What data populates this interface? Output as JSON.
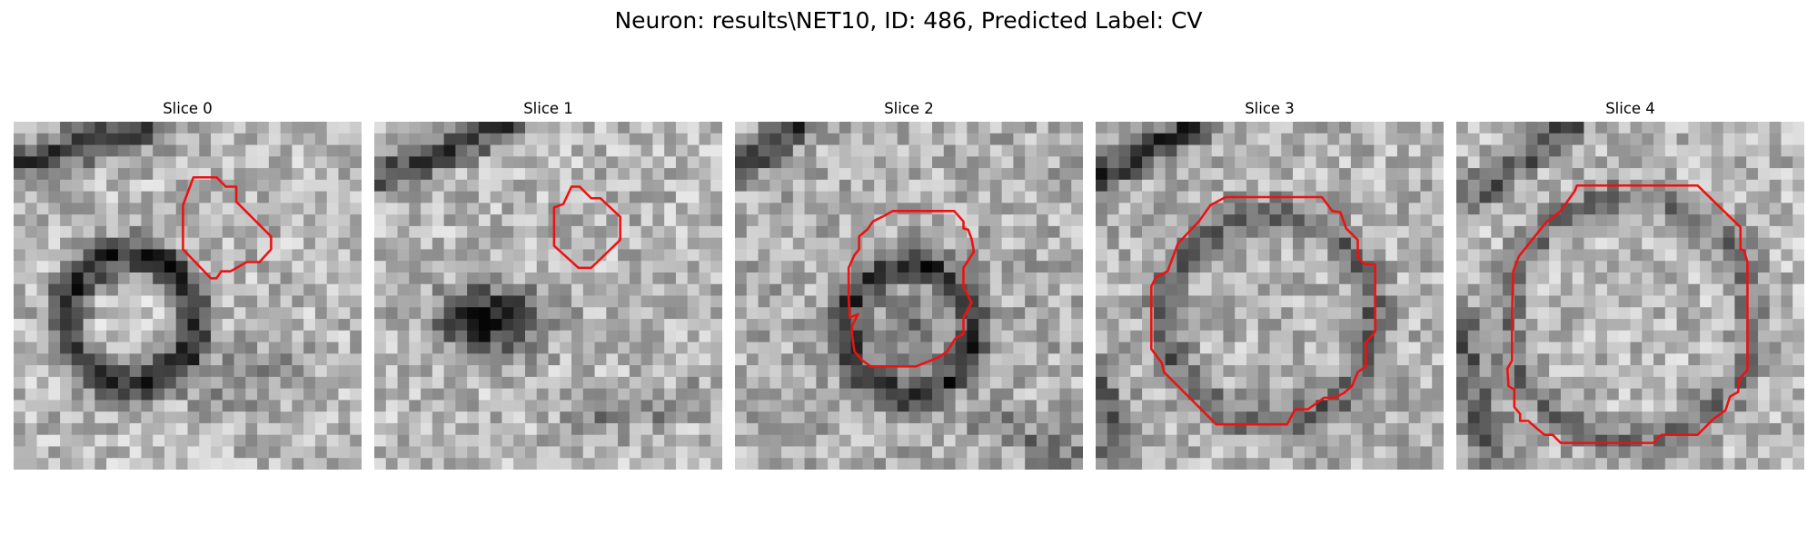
{
  "figure": {
    "suptitle": "Neuron: results\\NET10, ID: 486, Predicted Label: CV"
  },
  "panels": [
    {
      "title": "Slice 0"
    },
    {
      "title": "Slice 1"
    },
    {
      "title": "Slice 2"
    },
    {
      "title": "Slice 3"
    },
    {
      "title": "Slice 4"
    }
  ],
  "colors": {
    "contour": "#ee1111",
    "background": "#ffffff"
  }
}
